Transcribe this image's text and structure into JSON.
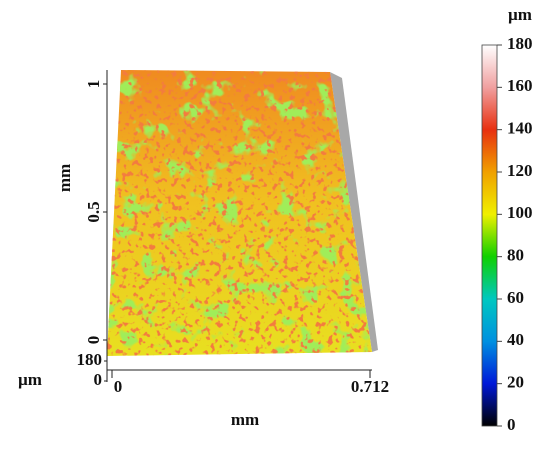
{
  "chart_data": {
    "type": "surface3d",
    "xlabel": "mm",
    "xlim": [
      0,
      0.712
    ],
    "xticks": [
      0,
      0.712
    ],
    "ylabel": "mm",
    "ylim": [
      0,
      1
    ],
    "yticks": [
      0,
      0.5,
      1
    ],
    "zlabel": "µm",
    "zlim": [
      0,
      180
    ],
    "zticks": [
      0,
      180
    ],
    "colorbar": {
      "label": "µm",
      "lim": [
        0,
        180
      ],
      "ticks": [
        0,
        20,
        40,
        60,
        80,
        100,
        120,
        140,
        160,
        180
      ],
      "colors": [
        "#000000",
        "#0018d8",
        "#0090e0",
        "#00c8c0",
        "#10d000",
        "#f0f000",
        "#f0a000",
        "#e83010",
        "#f0a0a0",
        "#ffffff"
      ]
    }
  }
}
